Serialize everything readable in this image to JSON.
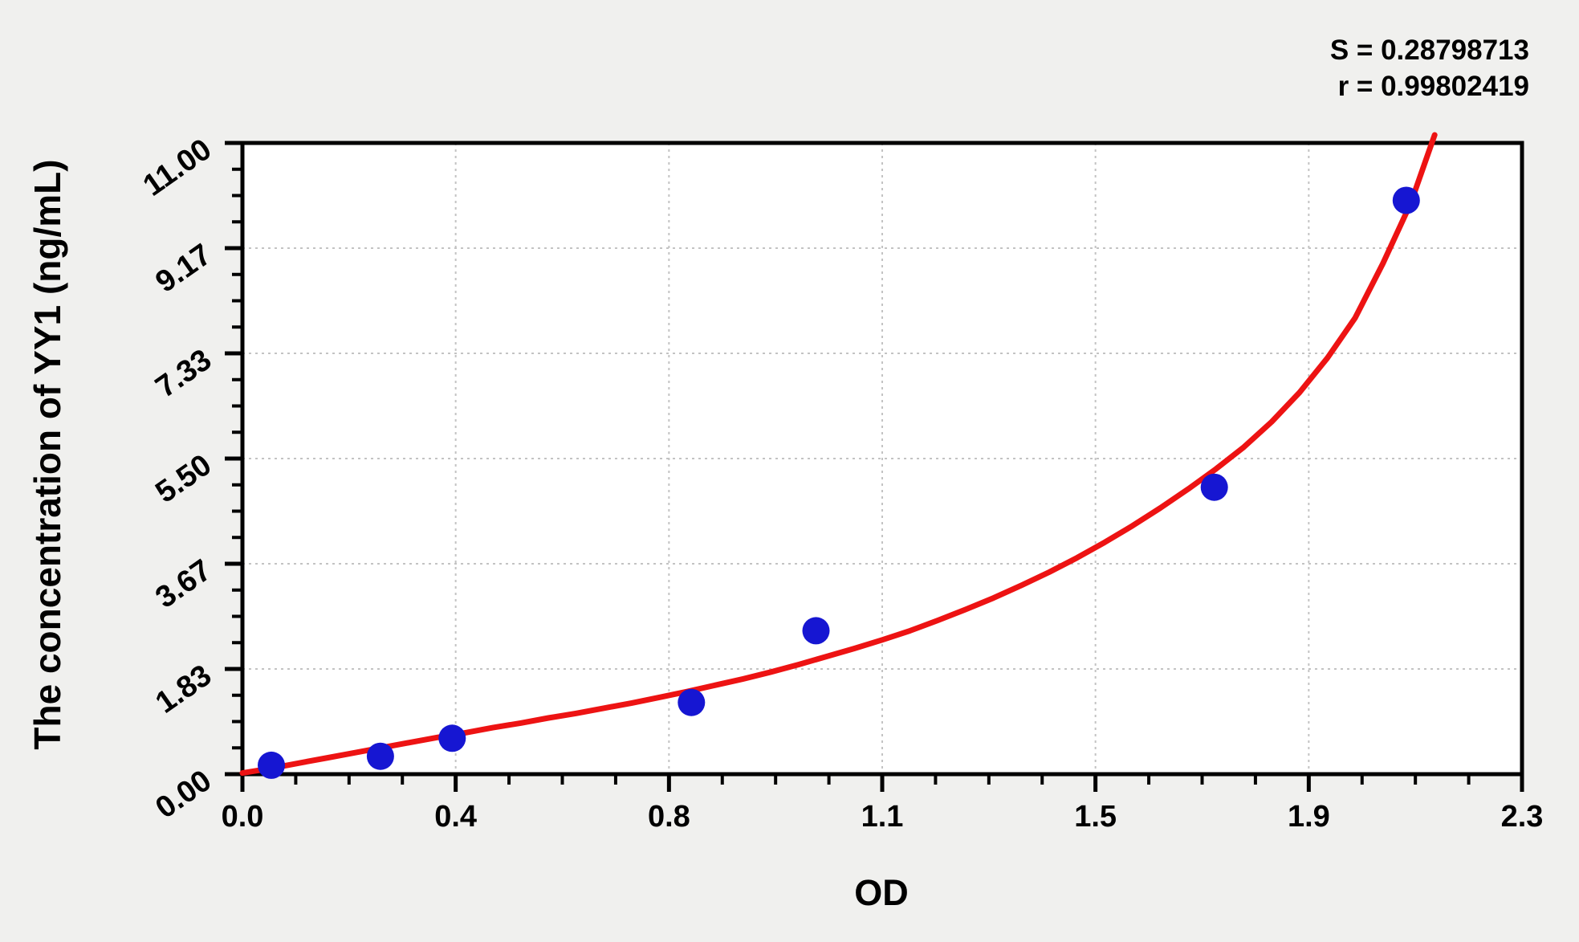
{
  "page": {
    "background": "#f0f0ee"
  },
  "fit_stats": {
    "s_label": "S = 0.28798713",
    "r_label": "r = 0.99802419"
  },
  "chart_data": {
    "type": "scatter",
    "title": "",
    "xlabel": "OD",
    "ylabel": "The concentration of YY1 (ng/mL)",
    "xlim": [
      0,
      2.3
    ],
    "ylim": [
      0,
      11
    ],
    "legend_position": "none",
    "annotations": [
      "S = 0.28798713",
      "r = 0.99802419"
    ],
    "x_axis": {
      "tick_labels": [
        "0.0",
        "0.4",
        "0.8",
        "1.1",
        "1.5",
        "1.9",
        "2.3"
      ],
      "tick_values": [
        0,
        0.3833,
        0.7667,
        1.15,
        1.5333,
        1.9167,
        2.3
      ],
      "minor_divisions": 4
    },
    "y_axis": {
      "tick_labels": [
        "0.00",
        "1.83",
        "3.67",
        "5.50",
        "7.33",
        "9.17",
        "11.00"
      ],
      "tick_values": [
        0,
        1.8333,
        3.6667,
        5.5,
        7.3333,
        9.1667,
        11
      ],
      "minor_divisions": 4
    },
    "grid": {
      "show": true,
      "style": "dashed",
      "at": "major-ticks"
    },
    "series": [
      {
        "name": "standard-points",
        "kind": "scatter",
        "color": "#1616d2",
        "marker_radius_px": 17,
        "points_od": [
          0.052,
          0.248,
          0.377,
          0.807,
          1.031,
          1.747,
          2.092
        ],
        "points_conc": [
          0.156,
          0.312,
          0.625,
          1.25,
          2.5,
          5,
          10
        ]
      },
      {
        "name": "fitted-curve",
        "kind": "line",
        "color": "#ed1313",
        "stroke_width_px": 7,
        "points": [
          [
            0.0,
            0.02
          ],
          [
            0.05,
            0.1
          ],
          [
            0.1,
            0.19
          ],
          [
            0.15,
            0.28
          ],
          [
            0.2,
            0.37
          ],
          [
            0.25,
            0.46
          ],
          [
            0.3,
            0.55
          ],
          [
            0.35,
            0.64
          ],
          [
            0.4,
            0.72
          ],
          [
            0.45,
            0.81
          ],
          [
            0.5,
            0.89
          ],
          [
            0.55,
            0.98
          ],
          [
            0.6,
            1.06
          ],
          [
            0.65,
            1.15
          ],
          [
            0.7,
            1.24
          ],
          [
            0.75,
            1.34
          ],
          [
            0.8,
            1.44
          ],
          [
            0.85,
            1.55
          ],
          [
            0.9,
            1.66
          ],
          [
            0.95,
            1.78
          ],
          [
            1.0,
            1.91
          ],
          [
            1.05,
            2.05
          ],
          [
            1.1,
            2.19
          ],
          [
            1.15,
            2.34
          ],
          [
            1.2,
            2.5
          ],
          [
            1.25,
            2.68
          ],
          [
            1.3,
            2.87
          ],
          [
            1.35,
            3.07
          ],
          [
            1.4,
            3.29
          ],
          [
            1.45,
            3.52
          ],
          [
            1.5,
            3.77
          ],
          [
            1.55,
            4.04
          ],
          [
            1.6,
            4.33
          ],
          [
            1.65,
            4.64
          ],
          [
            1.7,
            4.97
          ],
          [
            1.75,
            5.32
          ],
          [
            1.8,
            5.7
          ],
          [
            1.85,
            6.14
          ],
          [
            1.9,
            6.65
          ],
          [
            1.95,
            7.25
          ],
          [
            2.0,
            7.95
          ],
          [
            2.05,
            8.9
          ],
          [
            2.1,
            9.95
          ],
          [
            2.143,
            11.14
          ]
        ]
      }
    ]
  },
  "colors": {
    "page_bg": "#f0f0ee",
    "plot_bg": "#ffffff",
    "grid": "#c3c3c3",
    "axis": "#000000",
    "text": "#000000",
    "point": "#1616d2",
    "curve": "#ed1313"
  }
}
